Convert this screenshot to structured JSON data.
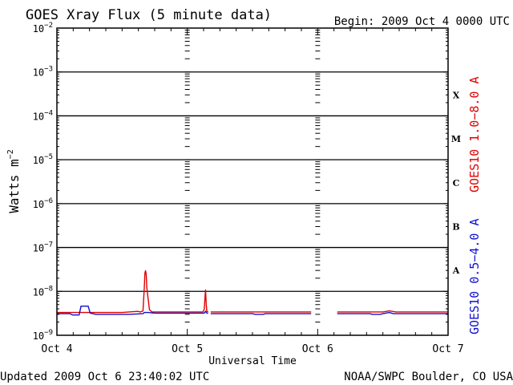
{
  "header": {
    "title": "GOES Xray Flux (5 minute data)",
    "begin": "Begin:  2009 Oct 4 0000 UTC"
  },
  "footer": {
    "updated": "Updated 2009 Oct  6 23:40:02 UTC",
    "source": "NOAA/SWPC Boulder, CO USA"
  },
  "colors": {
    "long": "#e00000",
    "short": "#1010d0",
    "axis": "#000000"
  },
  "chart_data": {
    "type": "line",
    "title": "GOES Xray Flux (5 minute data)",
    "xlabel": "Universal Time",
    "ylabel": "Watts m",
    "ylabel_sup": "−2",
    "yscale": "log",
    "ylim": [
      1e-09,
      0.01
    ],
    "xlim": [
      0,
      3
    ],
    "x_unit": "days since 2009 Oct 4 0000 UTC",
    "x_ticks": [
      {
        "x": 0,
        "label": "Oct 4"
      },
      {
        "x": 1,
        "label": "Oct 5"
      },
      {
        "x": 2,
        "label": "Oct 6"
      },
      {
        "x": 3,
        "label": "Oct 7"
      }
    ],
    "y_ticks": [
      {
        "mant": "10",
        "exp": "−9",
        "value": 1e-09
      },
      {
        "mant": "10",
        "exp": "−8",
        "value": 1e-08
      },
      {
        "mant": "10",
        "exp": "−7",
        "value": 1e-07
      },
      {
        "mant": "10",
        "exp": "−6",
        "value": 1e-06
      },
      {
        "mant": "10",
        "exp": "−5",
        "value": 1e-05
      },
      {
        "mant": "10",
        "exp": "−4",
        "value": 0.0001
      },
      {
        "mant": "10",
        "exp": "−3",
        "value": 0.001
      },
      {
        "mant": "10",
        "exp": "−2",
        "value": 0.01
      }
    ],
    "flare_classes": [
      {
        "label": "X",
        "value": 0.0003
      },
      {
        "label": "M",
        "value": 3e-05
      },
      {
        "label": "C",
        "value": 3e-06
      },
      {
        "label": "B",
        "value": 3e-07
      },
      {
        "label": "A",
        "value": 3e-08
      }
    ],
    "grid": true,
    "series": [
      {
        "name": "GOES10 1.0−8.0 A",
        "color": "#e00000",
        "segments": [
          [
            [
              0,
              3.3e-09
            ],
            [
              0.5,
              3.3e-09
            ],
            [
              0.62,
              3.5e-09
            ],
            [
              0.64,
              3.4e-09
            ],
            [
              0.66,
              3.6e-09
            ],
            [
              0.67,
              1.2e-08
            ],
            [
              0.675,
              2.6e-08
            ],
            [
              0.68,
              3e-08
            ],
            [
              0.685,
              2.4e-08
            ],
            [
              0.69,
              1.2e-08
            ],
            [
              0.7,
              6.5e-09
            ],
            [
              0.71,
              3.8e-09
            ],
            [
              0.73,
              3.4e-09
            ],
            [
              0.9,
              3.4e-09
            ],
            [
              1.12,
              3.4e-09
            ],
            [
              1.13,
              3.9e-09
            ],
            [
              1.14,
              1.1e-08
            ],
            [
              1.145,
              5e-09
            ],
            [
              1.15,
              3.5e-09
            ],
            [
              1.16,
              3.4e-09
            ]
          ],
          [
            [
              1.18,
              3.4e-09
            ],
            [
              1.95,
              3.4e-09
            ]
          ],
          [
            [
              2.15,
              3.4e-09
            ],
            [
              2.5,
              3.4e-09
            ],
            [
              2.55,
              3.6e-09
            ],
            [
              2.6,
              3.4e-09
            ],
            [
              3,
              3.4e-09
            ]
          ]
        ]
      },
      {
        "name": "GOES10 0.5−4.0 A",
        "color": "#1010d0",
        "segments": [
          [
            [
              0,
              3.1e-09
            ],
            [
              0.1,
              3.1e-09
            ],
            [
              0.12,
              2.9e-09
            ],
            [
              0.17,
              2.9e-09
            ],
            [
              0.185,
              4.6e-09
            ],
            [
              0.24,
              4.6e-09
            ],
            [
              0.255,
              3.2e-09
            ],
            [
              0.3,
              3e-09
            ],
            [
              0.55,
              3e-09
            ],
            [
              0.66,
              3.1e-09
            ],
            [
              0.67,
              3.3e-09
            ],
            [
              0.7,
              3.3e-09
            ],
            [
              0.75,
              3.2e-09
            ],
            [
              1.13,
              3.2e-09
            ],
            [
              1.14,
              3.5e-09
            ],
            [
              1.15,
              3.2e-09
            ],
            [
              1.16,
              3.2e-09
            ]
          ],
          [
            [
              1.18,
              3.1e-09
            ],
            [
              1.5,
              3.1e-09
            ],
            [
              1.52,
              3e-09
            ],
            [
              1.58,
              3e-09
            ],
            [
              1.6,
              3.1e-09
            ],
            [
              1.95,
              3.1e-09
            ]
          ],
          [
            [
              2.15,
              3.1e-09
            ],
            [
              2.4,
              3.1e-09
            ],
            [
              2.42,
              3e-09
            ],
            [
              2.48,
              3e-09
            ],
            [
              2.5,
              3.1e-09
            ],
            [
              2.55,
              3.3e-09
            ],
            [
              2.58,
              3.1e-09
            ],
            [
              3,
              3.1e-09
            ]
          ]
        ]
      }
    ]
  }
}
